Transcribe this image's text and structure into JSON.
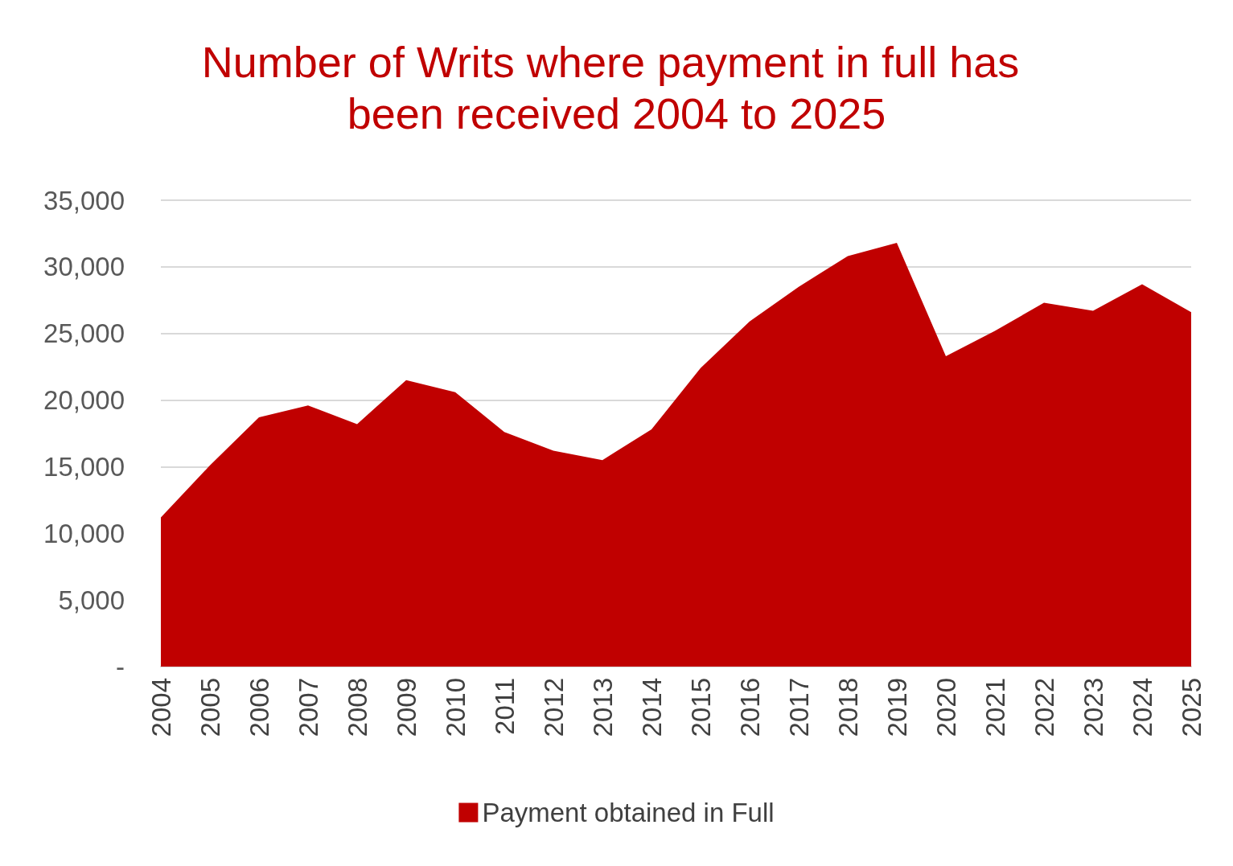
{
  "chart_data": {
    "type": "area",
    "title": "Number of Writs where payment in full has been received 2004 to 2025",
    "categories": [
      "2004",
      "2005",
      "2006",
      "2007",
      "2008",
      "2009",
      "2010",
      "2011",
      "2012",
      "2013",
      "2014",
      "2015",
      "2016",
      "2017",
      "2018",
      "2019",
      "2020",
      "2021",
      "2022",
      "2023",
      "2024",
      "2025"
    ],
    "series": [
      {
        "name": "Payment obtained in Full",
        "color": "#c00000",
        "values": [
          11200,
          15100,
          18700,
          19600,
          18200,
          21500,
          20600,
          17600,
          16200,
          15500,
          17800,
          22400,
          25900,
          28500,
          30800,
          31800,
          23300,
          25200,
          27300,
          26700,
          28700,
          26600
        ]
      }
    ],
    "ylim": [
      0,
      35000
    ],
    "yticks": [
      {
        "value": 0,
        "label": "-"
      },
      {
        "value": 5000,
        "label": "5,000"
      },
      {
        "value": 10000,
        "label": "10,000"
      },
      {
        "value": 15000,
        "label": "15,000"
      },
      {
        "value": 20000,
        "label": "20,000"
      },
      {
        "value": 25000,
        "label": "25,000"
      },
      {
        "value": 30000,
        "label": "30,000"
      },
      {
        "value": 35000,
        "label": "35,000"
      }
    ],
    "grid": "y",
    "legend": "bottom"
  }
}
